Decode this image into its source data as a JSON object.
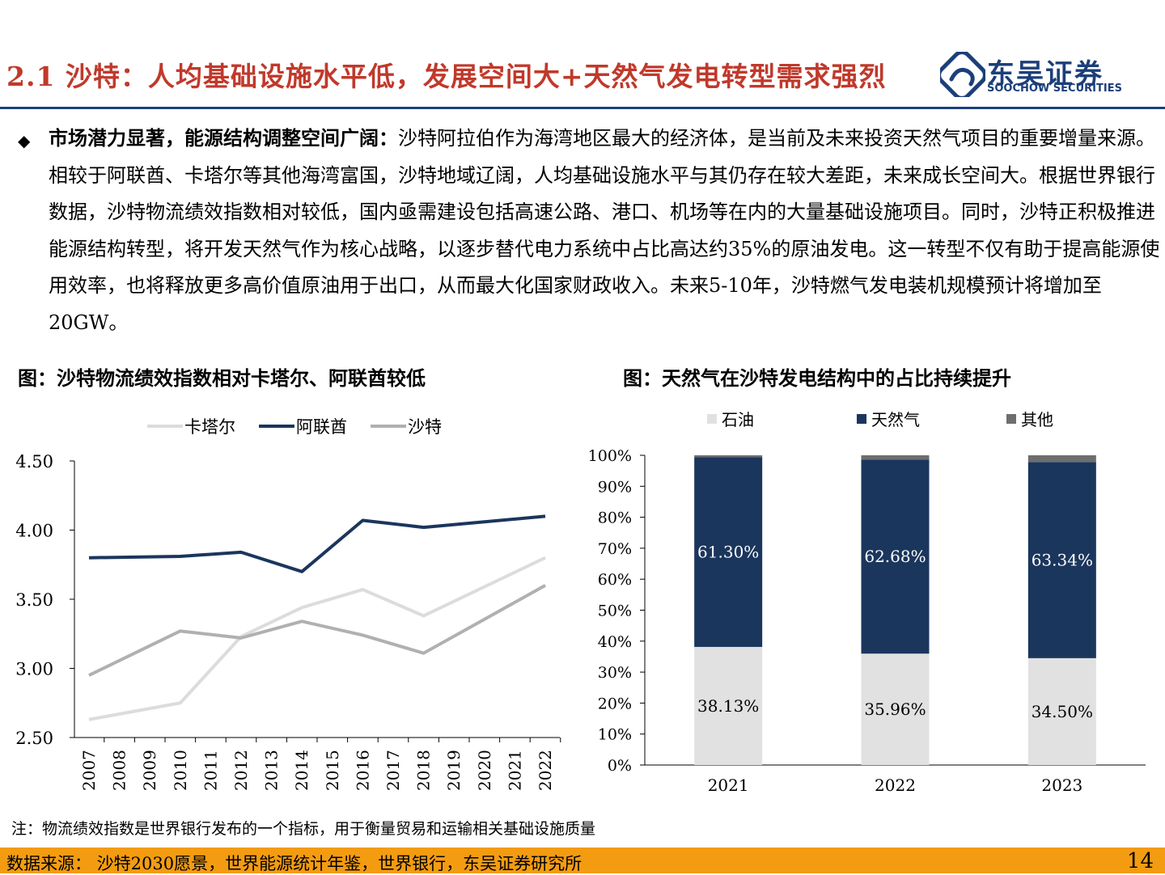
{
  "header": {
    "title": "2.1 沙特：人均基础设施水平低，发展空间大+天然气发电转型需求强烈",
    "logo_cn": "东吴证券",
    "logo_en": "SOOCHOW SECURITIES",
    "brand_color": "#1c3f7a",
    "title_color": "#c0392b"
  },
  "body": {
    "bullet": "◆",
    "lead": "市场潜力显著，能源结构调整空间广阔：",
    "text": "沙特阿拉伯作为海湾地区最大的经济体，是当前及未来投资天然气项目的重要增量来源。相较于阿联酋、卡塔尔等其他海湾富国，沙特地域辽阔，人均基础设施水平与其仍存在较大差距，未来成长空间大。根据世界银行数据，沙特物流绩效指数相对较低，国内亟需建设包括高速公路、港口、机场等在内的大量基础设施项目。同时，沙特正积极推进能源结构转型，将开发天然气作为核心战略，以逐步替代电力系统中占比高达约35%的原油发电。这一转型不仅有助于提高能源使用效率，也将释放更多高价值原油用于出口，从而最大化国家财政收入。未来5-10年，沙特燃气发电装机规模预计将增加至20GW。"
  },
  "figures": {
    "left_title": "图：沙特物流绩效指数相对卡塔尔、阿联酋较低",
    "right_title": "图：天然气在沙特发电结构中的占比持续提升"
  },
  "chart_data": [
    {
      "type": "line",
      "x": [
        "2007",
        "2010",
        "2012",
        "2014",
        "2016",
        "2018",
        "2022"
      ],
      "x_tick_labels": [
        "2007",
        "2008",
        "2009",
        "2010",
        "2011",
        "2012",
        "2013",
        "2014",
        "2015",
        "2016",
        "2017",
        "2018",
        "2019",
        "2020",
        "2021",
        "2022"
      ],
      "series": [
        {
          "name": "卡塔尔",
          "color": "#dcdcdc",
          "values": [
            2.63,
            2.75,
            3.23,
            3.44,
            3.57,
            3.38,
            3.8
          ]
        },
        {
          "name": "阿联酋",
          "color": "#1b365d",
          "values": [
            3.8,
            3.81,
            3.84,
            3.7,
            4.07,
            4.02,
            4.1
          ]
        },
        {
          "name": "沙特",
          "color": "#b0b0b0",
          "values": [
            2.95,
            3.27,
            3.22,
            3.34,
            3.24,
            3.11,
            3.6
          ]
        }
      ],
      "ylim": [
        2.5,
        4.5
      ],
      "y_ticks": [
        "2.50",
        "3.00",
        "3.50",
        "4.00",
        "4.50"
      ],
      "legend": "top"
    },
    {
      "type": "bar",
      "stacked": true,
      "categories": [
        "2021",
        "2022",
        "2023"
      ],
      "series": [
        {
          "name": "石油",
          "color": "#e1e1e1",
          "values": [
            38.13,
            35.96,
            34.5
          ],
          "labels": [
            "38.13%",
            "35.96%",
            "34.50%"
          ]
        },
        {
          "name": "天然气",
          "color": "#1b365d",
          "values": [
            61.3,
            62.68,
            63.34
          ],
          "labels": [
            "61.30%",
            "62.68%",
            "63.34%"
          ]
        },
        {
          "name": "其他",
          "color": "#6e6e6e",
          "values": [
            0.57,
            1.36,
            2.16
          ]
        }
      ],
      "ylim": [
        0,
        100
      ],
      "y_ticks": [
        "0%",
        "10%",
        "20%",
        "30%",
        "40%",
        "50%",
        "60%",
        "70%",
        "80%",
        "90%",
        "100%"
      ],
      "legend": "top"
    }
  ],
  "footer": {
    "note": "注：物流绩效指数是世界银行发布的一个指标，用于衡量贸易和运输相关基础设施质量",
    "source": "数据来源：  沙特2030愿景，世界能源统计年鉴，世界银行，东吴证券研究所",
    "page": "14"
  }
}
